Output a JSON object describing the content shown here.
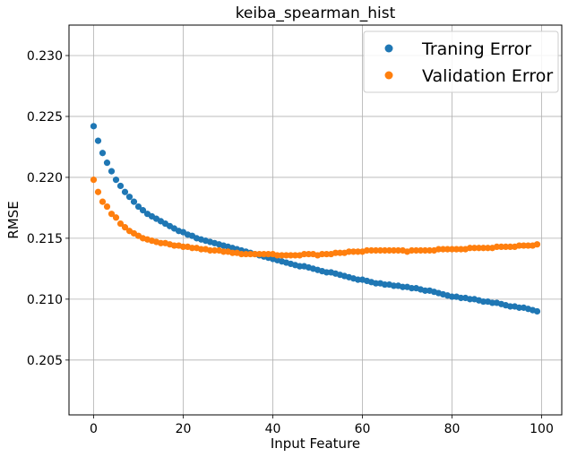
{
  "chart_data": {
    "type": "scatter",
    "title": "keiba_spearman_hist",
    "xlabel": "Input Feature",
    "ylabel": "RMSE",
    "xlim": [
      -5.5,
      104.5
    ],
    "ylim": [
      0.2005,
      0.2325
    ],
    "xticks": [
      0,
      20,
      40,
      60,
      80,
      100
    ],
    "yticks": [
      0.205,
      0.21,
      0.215,
      0.22,
      0.225,
      0.23
    ],
    "xtick_labels": [
      "0",
      "20",
      "40",
      "60",
      "80",
      "100"
    ],
    "ytick_labels": [
      "0.205",
      "0.210",
      "0.215",
      "0.220",
      "0.225",
      "0.230"
    ],
    "grid": true,
    "legend_position": "top-right",
    "series": [
      {
        "name": "Traning Error",
        "color": "#1f77b4",
        "x": [
          0,
          1,
          2,
          3,
          4,
          5,
          6,
          7,
          8,
          9,
          10,
          11,
          12,
          13,
          14,
          15,
          16,
          17,
          18,
          19,
          20,
          21,
          22,
          23,
          24,
          25,
          26,
          27,
          28,
          29,
          30,
          31,
          32,
          33,
          34,
          35,
          36,
          37,
          38,
          39,
          40,
          41,
          42,
          43,
          44,
          45,
          46,
          47,
          48,
          49,
          50,
          51,
          52,
          53,
          54,
          55,
          56,
          57,
          58,
          59,
          60,
          61,
          62,
          63,
          64,
          65,
          66,
          67,
          68,
          69,
          70,
          71,
          72,
          73,
          74,
          75,
          76,
          77,
          78,
          79,
          80,
          81,
          82,
          83,
          84,
          85,
          86,
          87,
          88,
          89,
          90,
          91,
          92,
          93,
          94,
          95,
          96,
          97,
          98,
          99
        ],
        "y": [
          0.2242,
          0.223,
          0.222,
          0.2212,
          0.2205,
          0.2198,
          0.2193,
          0.2188,
          0.2184,
          0.218,
          0.2176,
          0.2173,
          0.217,
          0.2168,
          0.2166,
          0.2164,
          0.2162,
          0.216,
          0.2158,
          0.2156,
          0.2155,
          0.2153,
          0.2152,
          0.215,
          0.2149,
          0.2148,
          0.2147,
          0.2146,
          0.2145,
          0.2144,
          0.2143,
          0.2142,
          0.2141,
          0.214,
          0.2139,
          0.2138,
          0.2137,
          0.2136,
          0.2135,
          0.2134,
          0.2133,
          0.2132,
          0.2131,
          0.213,
          0.2129,
          0.2128,
          0.2127,
          0.2127,
          0.2126,
          0.2125,
          0.2124,
          0.2123,
          0.2122,
          0.2122,
          0.2121,
          0.212,
          0.2119,
          0.2118,
          0.2117,
          0.2116,
          0.2116,
          0.2115,
          0.2114,
          0.2113,
          0.2113,
          0.2112,
          0.2112,
          0.2111,
          0.2111,
          0.211,
          0.211,
          0.2109,
          0.2109,
          0.2108,
          0.2107,
          0.2107,
          0.2106,
          0.2105,
          0.2104,
          0.2103,
          0.2102,
          0.2102,
          0.2101,
          0.2101,
          0.21,
          0.21,
          0.2099,
          0.2098,
          0.2098,
          0.2097,
          0.2097,
          0.2096,
          0.2095,
          0.2094,
          0.2094,
          0.2093,
          0.2093,
          0.2092,
          0.2091,
          0.209
        ]
      },
      {
        "name": "Validation Error",
        "color": "#ff7f0e",
        "x": [
          0,
          1,
          2,
          3,
          4,
          5,
          6,
          7,
          8,
          9,
          10,
          11,
          12,
          13,
          14,
          15,
          16,
          17,
          18,
          19,
          20,
          21,
          22,
          23,
          24,
          25,
          26,
          27,
          28,
          29,
          30,
          31,
          32,
          33,
          34,
          35,
          36,
          37,
          38,
          39,
          40,
          41,
          42,
          43,
          44,
          45,
          46,
          47,
          48,
          49,
          50,
          51,
          52,
          53,
          54,
          55,
          56,
          57,
          58,
          59,
          60,
          61,
          62,
          63,
          64,
          65,
          66,
          67,
          68,
          69,
          70,
          71,
          72,
          73,
          74,
          75,
          76,
          77,
          78,
          79,
          80,
          81,
          82,
          83,
          84,
          85,
          86,
          87,
          88,
          89,
          90,
          91,
          92,
          93,
          94,
          95,
          96,
          97,
          98,
          99
        ],
        "y": [
          0.2198,
          0.2188,
          0.218,
          0.2176,
          0.217,
          0.2167,
          0.2162,
          0.2159,
          0.2156,
          0.2154,
          0.2152,
          0.215,
          0.2149,
          0.2148,
          0.2147,
          0.2146,
          0.2146,
          0.2145,
          0.2144,
          0.2144,
          0.2143,
          0.2143,
          0.2142,
          0.2142,
          0.2141,
          0.2141,
          0.214,
          0.214,
          0.214,
          0.2139,
          0.2139,
          0.2138,
          0.2138,
          0.2137,
          0.2137,
          0.2137,
          0.2137,
          0.2137,
          0.2137,
          0.2137,
          0.2137,
          0.2136,
          0.2136,
          0.2136,
          0.2136,
          0.2136,
          0.2136,
          0.2137,
          0.2137,
          0.2137,
          0.2136,
          0.2137,
          0.2137,
          0.2137,
          0.2138,
          0.2138,
          0.2138,
          0.2139,
          0.2139,
          0.2139,
          0.2139,
          0.214,
          0.214,
          0.214,
          0.214,
          0.214,
          0.214,
          0.214,
          0.214,
          0.214,
          0.2139,
          0.214,
          0.214,
          0.214,
          0.214,
          0.214,
          0.214,
          0.2141,
          0.2141,
          0.2141,
          0.2141,
          0.2141,
          0.2141,
          0.2141,
          0.2142,
          0.2142,
          0.2142,
          0.2142,
          0.2142,
          0.2142,
          0.2143,
          0.2143,
          0.2143,
          0.2143,
          0.2143,
          0.2144,
          0.2144,
          0.2144,
          0.2144,
          0.2145
        ]
      }
    ]
  }
}
